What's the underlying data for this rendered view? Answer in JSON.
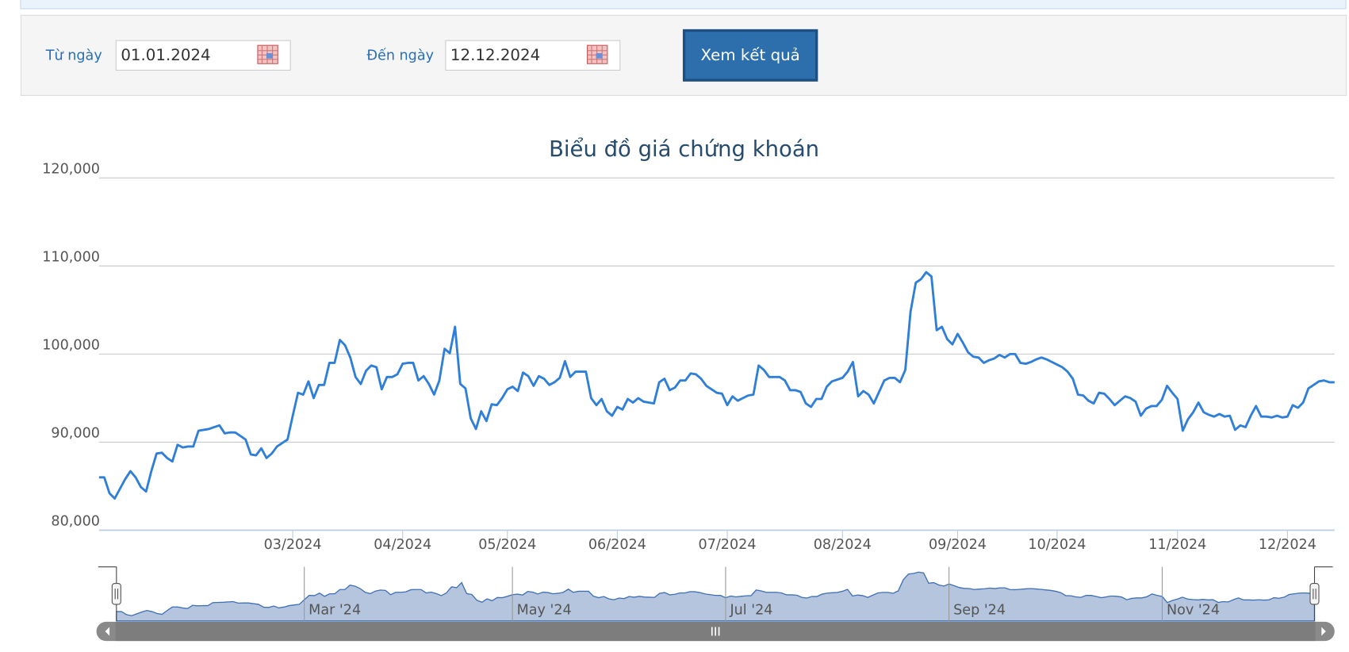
{
  "filter": {
    "from_label": "Từ ngày",
    "from_value": "01.01.2024",
    "to_label": "Đến ngày",
    "to_value": "12.12.2024",
    "button": "Xem kết quả"
  },
  "chart_data": {
    "type": "line",
    "title": "Biểu đồ giá chứng khoán",
    "ylim": [
      80000,
      120000
    ],
    "yticks": [
      {
        "value": 80000,
        "label": "80,000"
      },
      {
        "value": 90000,
        "label": "90,000"
      },
      {
        "value": 100000,
        "label": "100,000"
      },
      {
        "value": 110000,
        "label": "110,000"
      },
      {
        "value": 120000,
        "label": "120,000"
      }
    ],
    "xticks": [
      {
        "value": 37,
        "label": "03/2024"
      },
      {
        "value": 58,
        "label": "04/2024"
      },
      {
        "value": 78,
        "label": "05/2024"
      },
      {
        "value": 99,
        "label": "06/2024"
      },
      {
        "value": 120,
        "label": "07/2024"
      },
      {
        "value": 142,
        "label": "08/2024"
      },
      {
        "value": 164,
        "label": "09/2024"
      },
      {
        "value": 183,
        "label": "10/2024"
      },
      {
        "value": 206,
        "label": "11/2024"
      },
      {
        "value": 227,
        "label": "12/2024"
      }
    ],
    "grid": true,
    "series": [
      {
        "color": "#2f7ed8",
        "values": [
          86000,
          86000,
          84200,
          83600,
          84700,
          85800,
          86700,
          86000,
          84900,
          84400,
          86700,
          88700,
          88800,
          88200,
          87800,
          89700,
          89400,
          89500,
          89500,
          91300,
          91400,
          91500,
          91700,
          91900,
          91000,
          91100,
          91100,
          90700,
          90300,
          88600,
          88500,
          89300,
          88200,
          88700,
          89500,
          89900,
          90300,
          93000,
          95600,
          95400,
          96900,
          95000,
          96500,
          96500,
          99000,
          99000,
          101600,
          101000,
          99600,
          97400,
          96600,
          98100,
          98700,
          98500,
          96000,
          97400,
          97400,
          97700,
          98900,
          99000,
          99000,
          97000,
          97500,
          96600,
          95400,
          97000,
          100600,
          100100,
          103100,
          96600,
          96100,
          92700,
          91500,
          93500,
          92400,
          94300,
          94200,
          95000,
          96000,
          96300,
          95800,
          97900,
          97500,
          96400,
          97500,
          97200,
          96500,
          96800,
          97300,
          99200,
          97400,
          98000,
          98000,
          98000,
          95000,
          94200,
          94900,
          93500,
          93000,
          94000,
          93700,
          94900,
          94500,
          95000,
          94600,
          94500,
          94400,
          96800,
          97200,
          95900,
          96200,
          97000,
          97000,
          97800,
          97700,
          97200,
          96400,
          96000,
          95600,
          95500,
          94200,
          95200,
          94700,
          95000,
          95300,
          95400,
          98700,
          98200,
          97400,
          97400,
          97400,
          97000,
          95900,
          95900,
          95700,
          94400,
          94000,
          94900,
          94900,
          96300,
          96900,
          97100,
          97300,
          98000,
          99100,
          95200,
          95800,
          95400,
          94400,
          95700,
          97000,
          97300,
          97300,
          96800,
          98200,
          104800,
          108100,
          108500,
          109300,
          108800,
          102700,
          103100,
          101700,
          101100,
          102300,
          101300,
          100200,
          99700,
          99600,
          99000,
          99300,
          99500,
          99900,
          99600,
          100000,
          100000,
          99000,
          98900,
          99100,
          99400,
          99600,
          99400,
          99100,
          98800,
          98500,
          98000,
          97200,
          95400,
          95300,
          94700,
          94400,
          95600,
          95500,
          94900,
          94200,
          94700,
          95200,
          95000,
          94600,
          93000,
          93800,
          94100,
          94100,
          94800,
          96400,
          95600,
          94900,
          91300,
          92600,
          93400,
          94500,
          93400,
          93100,
          92900,
          93200,
          92900,
          93000,
          91400,
          91900,
          91700,
          93000,
          94100,
          92900,
          92900,
          92800,
          93000,
          92800,
          92900,
          94200,
          93900,
          94500,
          96100,
          96500,
          96900,
          97000,
          96800,
          96800
        ]
      }
    ],
    "navigator": {
      "xticks": [
        {
          "value": 37,
          "label": "Mar '24"
        },
        {
          "value": 78,
          "label": "May '24"
        },
        {
          "value": 120,
          "label": "Jul '24"
        },
        {
          "value": 164,
          "label": "Sep '24"
        },
        {
          "value": 206,
          "label": "Nov '24"
        }
      ]
    }
  }
}
